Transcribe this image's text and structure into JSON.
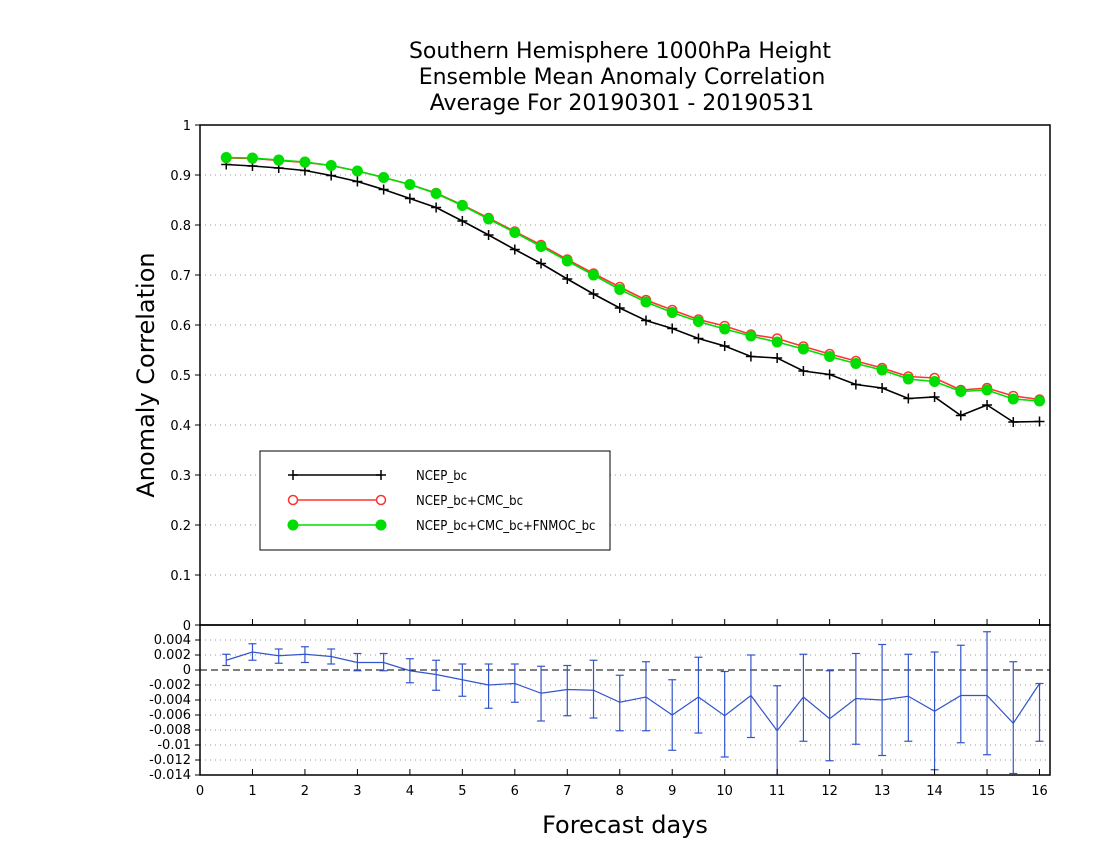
{
  "chart_data": [
    {
      "type": "line",
      "title": [
        "Southern Hemisphere 1000hPa Height",
        "Ensemble Mean Anomaly Correlation",
        "Average For 20190301 - 20190531"
      ],
      "xlabel": "Forecast days",
      "ylabel": "Anomaly Correlation",
      "xlim": [
        0,
        16.2
      ],
      "ylim": [
        0,
        1
      ],
      "xticks": [
        "0",
        "1",
        "2",
        "3",
        "4",
        "5",
        "6",
        "7",
        "8",
        "9",
        "10",
        "11",
        "12",
        "13",
        "14",
        "15",
        "16"
      ],
      "yticks": [
        "0",
        "0.1",
        "0.2",
        "0.3",
        "0.4",
        "0.5",
        "0.6",
        "0.7",
        "0.8",
        "0.9",
        "1"
      ],
      "grid": true,
      "legend_position": "lower-left",
      "x": [
        0.5,
        1,
        1.5,
        2,
        2.5,
        3,
        3.5,
        4,
        4.5,
        5,
        5.5,
        6,
        6.5,
        7,
        7.5,
        8,
        8.5,
        9,
        9.5,
        10,
        10.5,
        11,
        11.5,
        12,
        12.5,
        13,
        13.5,
        14,
        14.5,
        15,
        15.5,
        16
      ],
      "series": [
        {
          "name": "NCEP_bc",
          "color": "#000000",
          "marker": "plus",
          "values": [
            0.921,
            0.918,
            0.914,
            0.909,
            0.899,
            0.887,
            0.871,
            0.853,
            0.835,
            0.808,
            0.78,
            0.751,
            0.723,
            0.692,
            0.662,
            0.634,
            0.609,
            0.593,
            0.573,
            0.558,
            0.537,
            0.534,
            0.508,
            0.501,
            0.481,
            0.474,
            0.453,
            0.456,
            0.419,
            0.44,
            0.406,
            0.407
          ]
        },
        {
          "name": "NCEP_bc+CMC_bc",
          "color": "#ff3333",
          "marker": "open-circle",
          "values": [
            0.934,
            0.933,
            0.929,
            0.925,
            0.919,
            0.908,
            0.895,
            0.881,
            0.864,
            0.84,
            0.814,
            0.787,
            0.76,
            0.731,
            0.703,
            0.676,
            0.65,
            0.63,
            0.611,
            0.598,
            0.581,
            0.573,
            0.557,
            0.542,
            0.528,
            0.514,
            0.497,
            0.494,
            0.47,
            0.474,
            0.458,
            0.451
          ]
        },
        {
          "name": "NCEP_bc+CMC_bc+FNMOC_bc",
          "color": "#00dd00",
          "marker": "filled-circle",
          "values": [
            0.935,
            0.934,
            0.93,
            0.926,
            0.919,
            0.908,
            0.895,
            0.881,
            0.863,
            0.839,
            0.812,
            0.785,
            0.757,
            0.728,
            0.7,
            0.671,
            0.646,
            0.625,
            0.607,
            0.592,
            0.578,
            0.566,
            0.552,
            0.537,
            0.523,
            0.51,
            0.492,
            0.487,
            0.467,
            0.47,
            0.452,
            0.448
          ]
        }
      ]
    },
    {
      "type": "line",
      "xlabel": "Forecast days",
      "ylabel": "",
      "xlim": [
        0,
        16.2
      ],
      "ylim": [
        -0.014,
        0.006
      ],
      "yticks": [
        "0.004",
        "0.002",
        "0",
        "-0.002",
        "-0.004",
        "-0.006",
        "-0.008",
        "-0.01",
        "-0.012",
        "-0.014"
      ],
      "grid": true,
      "x": [
        0.5,
        1,
        1.5,
        2,
        2.5,
        3,
        3.5,
        4,
        4.5,
        5,
        5.5,
        6,
        6.5,
        7,
        7.5,
        8,
        8.5,
        9,
        9.5,
        10,
        10.5,
        11,
        11.5,
        12,
        12.5,
        13,
        13.5,
        14,
        14.5,
        15,
        15.5,
        16
      ],
      "series": [
        {
          "name": "",
          "color": "#3355cc",
          "marker": "errorbar",
          "values": [
            0.0013,
            0.0024,
            0.0019,
            0.0021,
            0.0018,
            0.001,
            0.001,
            -0.0001,
            -0.0006,
            -0.0013,
            -0.002,
            -0.0018,
            -0.0031,
            -0.0026,
            -0.0027,
            -0.0043,
            -0.0036,
            -0.006,
            -0.0036,
            -0.0061,
            -0.0034,
            -0.0081,
            -0.0036,
            -0.0065,
            -0.0038,
            -0.004,
            -0.0035,
            -0.0055,
            -0.0034,
            -0.0034,
            -0.0071,
            -0.0018
          ],
          "error_low": [
            0.0006,
            0.0013,
            0.0009,
            0.001,
            0.0008,
            -0.0001,
            -0.0001,
            -0.0017,
            -0.0027,
            -0.0035,
            -0.0051,
            -0.0043,
            -0.0068,
            -0.0061,
            -0.0064,
            -0.0081,
            -0.0081,
            -0.0107,
            -0.0084,
            -0.0116,
            -0.009,
            -0.0142,
            -0.0095,
            -0.0121,
            -0.0099,
            -0.0114,
            -0.0095,
            -0.0133,
            -0.0097,
            -0.0113,
            -0.0138,
            -0.0095
          ],
          "error_high": [
            0.0021,
            0.0035,
            0.0028,
            0.0031,
            0.0028,
            0.0022,
            0.0022,
            0.0015,
            0.0013,
            0.0008,
            0.0008,
            0.0008,
            0.0005,
            0.0006,
            0.0013,
            -0.0007,
            0.0011,
            -0.0013,
            0.0017,
            -0.0002,
            0.002,
            -0.0021,
            0.0021,
            -0.0001,
            0.0022,
            0.0034,
            0.0021,
            0.0024,
            0.0033,
            0.0051,
            0.0011,
            -0.0018
          ]
        }
      ]
    }
  ]
}
